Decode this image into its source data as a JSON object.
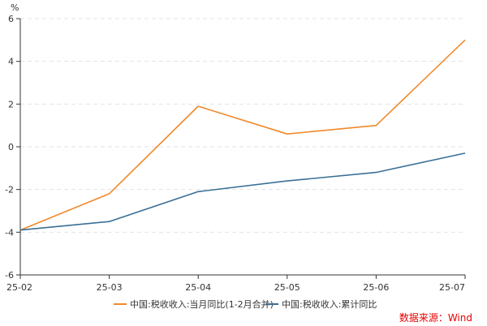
{
  "chart_data": {
    "type": "line",
    "unit": "%",
    "categories": [
      "25-02",
      "25-03",
      "25-04",
      "25-05",
      "25-06",
      "25-07"
    ],
    "ylim": [
      -6,
      6
    ],
    "yticks": [
      "6",
      "4",
      "2",
      "0",
      "-2",
      "-4",
      "-6"
    ],
    "grid": true,
    "legend_position": "bottom",
    "series": [
      {
        "name": "中国:税收收入:当月同比(1-2月合并)",
        "color": "#f0892b",
        "values": [
          -3.9,
          -2.2,
          1.9,
          0.6,
          1.0,
          5.0
        ]
      },
      {
        "name": "中国:税收收入:累计同比",
        "color": "#3a6f95",
        "values": [
          -3.9,
          -3.5,
          -2.1,
          -1.6,
          -1.2,
          -0.3
        ]
      }
    ],
    "source": "数据来源：Wind"
  }
}
